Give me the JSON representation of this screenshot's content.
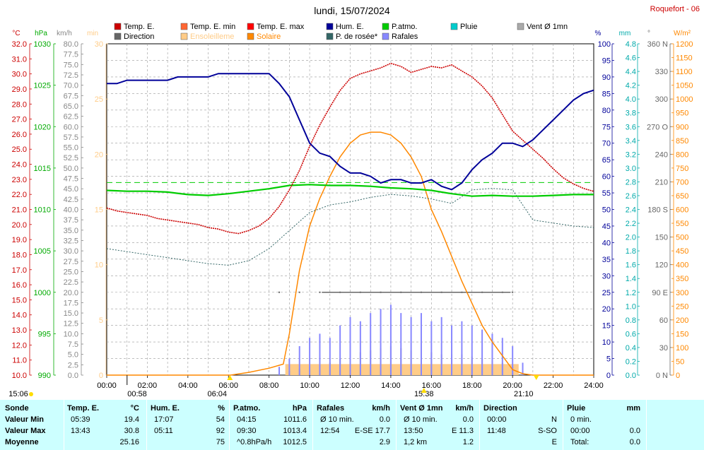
{
  "header": {
    "title": "lundi, 15/07/2024",
    "station": "Roquefort - 06",
    "sunrise_label": "06:04",
    "sunset_label": "21:10",
    "noon_label": "15:38",
    "left_time": "15:06",
    "left_time2": "00:58"
  },
  "legend": [
    {
      "label": "Temp. E.",
      "color": "#cc0000"
    },
    {
      "label": "Temp. E. min",
      "color": "#ff6633"
    },
    {
      "label": "Temp. E. max",
      "color": "#ff0000"
    },
    {
      "label": "Hum. E.",
      "color": "#000099"
    },
    {
      "label": "P.atmo.",
      "color": "#00cc00"
    },
    {
      "label": "Pluie",
      "color": "#00cccc"
    },
    {
      "label": "Vent Ø 1mn",
      "color": "#aaaaaa"
    },
    {
      "label": "Direction",
      "color": "#666666"
    },
    {
      "label": "Ensoleilleme",
      "color": "#ffcc88"
    },
    {
      "label": "Solaire",
      "color": "#ff8800"
    },
    {
      "label": "P. de rosée*",
      "color": "#336666"
    },
    {
      "label": "Rafales",
      "color": "#8888ff"
    }
  ],
  "axes": {
    "units": {
      "temp": "°C",
      "hpa": "hPa",
      "kmh": "km/h",
      "min": "min",
      "pct": "%",
      "mm": "mm",
      "deg": "°",
      "wm2": "W/m²"
    },
    "temp_ticks": [
      "32.0",
      "31.0",
      "30.0",
      "29.0",
      "28.0",
      "27.0",
      "26.0",
      "25.0",
      "24.0",
      "23.0",
      "22.0",
      "21.0",
      "20.0",
      "19.0",
      "18.0",
      "17.0",
      "16.0",
      "15.0",
      "14.0",
      "13.0",
      "12.0",
      "11.0",
      "10.0"
    ],
    "hpa_ticks": [
      "1030",
      "1025",
      "1020",
      "1015",
      "1010",
      "1005",
      "1000",
      "995",
      "990"
    ],
    "kmh_ticks": [
      "80.0",
      "77.5",
      "75.0",
      "72.5",
      "70.0",
      "67.5",
      "65.0",
      "62.5",
      "60.0",
      "57.5",
      "55.0",
      "52.5",
      "50.0",
      "47.5",
      "45.0",
      "42.5",
      "40.0",
      "37.5",
      "35.0",
      "32.5",
      "30.0",
      "27.5",
      "25.0",
      "22.5",
      "20.0",
      "17.5",
      "15.0",
      "12.5",
      "10.0",
      "7.5",
      "5.0",
      "2.5",
      "0.0"
    ],
    "min_ticks": [
      "30",
      "25",
      "20",
      "15",
      "10",
      "5",
      "0"
    ],
    "pct_ticks": [
      "100",
      "95",
      "90",
      "85",
      "80",
      "75",
      "70",
      "65",
      "60",
      "55",
      "50",
      "45",
      "40",
      "35",
      "30",
      "25",
      "20",
      "15",
      "10",
      "5",
      "0"
    ],
    "mm_ticks": [
      "4.8",
      "4.6",
      "4.4",
      "4.2",
      "4.0",
      "3.8",
      "3.6",
      "3.4",
      "3.2",
      "3.0",
      "2.8",
      "2.6",
      "2.4",
      "2.2",
      "2.0",
      "1.8",
      "1.6",
      "1.4",
      "1.2",
      "1.0",
      "0.8",
      "0.6",
      "0.4",
      "0.2",
      "0.0"
    ],
    "dir_ticks": [
      "360 N",
      "330",
      "300",
      "270 O",
      "240",
      "210",
      "180 S",
      "150",
      "120",
      "90 E",
      "60",
      "30",
      "0 N"
    ],
    "wm2_ticks": [
      "1200",
      "1150",
      "1100",
      "1050",
      "1000",
      "950",
      "900",
      "850",
      "800",
      "750",
      "700",
      "650",
      "600",
      "550",
      "500",
      "450",
      "400",
      "350",
      "300",
      "250",
      "200",
      "150",
      "100",
      "50",
      "0"
    ],
    "time_ticks": [
      "00:00",
      "02:00",
      "04:00",
      "06:00",
      "08:00",
      "10:00",
      "12:00",
      "14:00",
      "16:00",
      "18:00",
      "20:00",
      "22:00",
      "24:00"
    ]
  },
  "chart_data": {
    "type": "line",
    "title": "lundi, 15/07/2024",
    "x_unit": "hour",
    "xlim": [
      0,
      24
    ],
    "series": [
      {
        "name": "Temp. E.",
        "axis": "temp",
        "ylim": [
          10,
          32
        ],
        "color": "#cc0000",
        "x": [
          0,
          0.5,
          1,
          1.5,
          2,
          2.5,
          3,
          3.5,
          4,
          4.5,
          5,
          5.5,
          6,
          6.5,
          7,
          7.5,
          8,
          8.5,
          9,
          9.5,
          10,
          10.5,
          11,
          11.5,
          12,
          12.5,
          13,
          13.5,
          14,
          14.5,
          15,
          15.5,
          16,
          16.5,
          17,
          17.5,
          18,
          18.5,
          19,
          19.5,
          20,
          20.5,
          21,
          21.5,
          22,
          22.5,
          23,
          23.5,
          24
        ],
        "y": [
          21.1,
          20.9,
          20.8,
          20.7,
          20.6,
          20.4,
          20.3,
          20.2,
          20.1,
          20.0,
          19.8,
          19.7,
          19.5,
          19.4,
          19.6,
          19.9,
          20.4,
          21.2,
          22.3,
          23.6,
          25.2,
          26.6,
          27.8,
          28.9,
          29.7,
          30.0,
          30.2,
          30.4,
          30.7,
          30.5,
          30.1,
          30.3,
          30.5,
          30.4,
          30.6,
          30.2,
          29.8,
          29.2,
          28.4,
          27.3,
          26.2,
          25.6,
          25.0,
          24.4,
          23.7,
          23.1,
          22.7,
          22.4,
          22.2
        ]
      },
      {
        "name": "Hum. E.",
        "axis": "pct",
        "ylim": [
          0,
          100
        ],
        "color": "#000099",
        "x": [
          0,
          0.5,
          1,
          1.5,
          2,
          2.5,
          3,
          3.5,
          4,
          4.5,
          5,
          5.5,
          6,
          6.5,
          7,
          7.5,
          8,
          8.5,
          9,
          9.5,
          10,
          10.5,
          11,
          11.5,
          12,
          12.5,
          13,
          13.5,
          14,
          14.5,
          15,
          15.5,
          16,
          16.5,
          17,
          17.5,
          18,
          18.5,
          19,
          19.5,
          20,
          20.5,
          21,
          21.5,
          22,
          22.5,
          23,
          23.5,
          24
        ],
        "y": [
          88,
          88,
          89,
          89,
          89,
          89,
          89,
          90,
          90,
          90,
          90,
          91,
          91,
          91,
          91,
          91,
          91,
          88,
          84,
          77,
          70,
          67,
          66,
          63,
          61,
          61,
          60,
          58,
          59,
          59,
          58,
          58,
          59,
          57,
          56,
          58,
          62,
          65,
          67,
          70,
          70,
          69,
          71,
          74,
          77,
          80,
          83,
          85,
          86
        ]
      },
      {
        "name": "P.atmo.",
        "axis": "hpa",
        "ylim": [
          990,
          1030
        ],
        "color": "#00cc00",
        "x": [
          0,
          1,
          2,
          3,
          4,
          5,
          6,
          7,
          8,
          9,
          10,
          11,
          12,
          13,
          14,
          15,
          16,
          17,
          18,
          19,
          20,
          21,
          22,
          23,
          24
        ],
        "y": [
          1012.3,
          1012.2,
          1012.2,
          1012.1,
          1011.8,
          1011.7,
          1011.9,
          1012.2,
          1012.5,
          1012.9,
          1013.0,
          1012.9,
          1012.9,
          1012.8,
          1012.6,
          1012.5,
          1012.3,
          1011.9,
          1011.6,
          1011.7,
          1011.6,
          1011.6,
          1011.7,
          1011.8,
          1011.8
        ]
      },
      {
        "name": "P. de rosée*",
        "axis": "temp",
        "ylim": [
          10,
          32
        ],
        "color": "#336666",
        "x": [
          0,
          1,
          2,
          3,
          4,
          5,
          6,
          7,
          8,
          9,
          10,
          11,
          12,
          13,
          14,
          15,
          16,
          17,
          18,
          19,
          20,
          21,
          22,
          23,
          24
        ],
        "y": [
          18.4,
          18.2,
          18.0,
          17.8,
          17.6,
          17.4,
          17.3,
          17.6,
          18.4,
          19.6,
          20.8,
          21.3,
          21.5,
          21.8,
          22.0,
          21.9,
          21.7,
          21.4,
          22.3,
          22.4,
          22.3,
          20.3,
          20.1,
          19.9,
          19.8
        ]
      },
      {
        "name": "Solaire",
        "axis": "wm2",
        "ylim": [
          0,
          1200
        ],
        "color": "#ff8800",
        "x": [
          0,
          6.1,
          7,
          8,
          8.7,
          9,
          9.5,
          10,
          10.5,
          11,
          11.5,
          12,
          12.5,
          13,
          13.5,
          14,
          14.5,
          15,
          15.5,
          16,
          16.5,
          17,
          17.5,
          18,
          18.5,
          19,
          19.5,
          20,
          20.5,
          21,
          21.1,
          24
        ],
        "y": [
          0,
          0,
          10,
          25,
          40,
          150,
          380,
          540,
          640,
          720,
          790,
          840,
          870,
          880,
          880,
          870,
          840,
          790,
          720,
          600,
          520,
          430,
          340,
          260,
          180,
          120,
          70,
          20,
          5,
          0,
          0,
          0
        ]
      },
      {
        "name": "Rafales",
        "axis": "kmh",
        "ylim": [
          0,
          80
        ],
        "color": "#8888ff",
        "x": [
          8.5,
          9,
          9.5,
          10,
          10.5,
          11,
          11.5,
          12,
          12.5,
          13,
          13.5,
          14,
          14.5,
          15,
          15.5,
          16,
          16.5,
          17,
          17.5,
          18,
          18.5,
          19,
          19.5,
          20,
          20.5,
          21
        ],
        "y": [
          2,
          4,
          7,
          9,
          10,
          9,
          12,
          14,
          13,
          15,
          16,
          17,
          15,
          14,
          15,
          13,
          14,
          12,
          13,
          12,
          11,
          10,
          9,
          7,
          3,
          0
        ]
      },
      {
        "name": "Vent Ø 1mn",
        "axis": "kmh",
        "ylim": [
          0,
          80
        ],
        "color": "#aaaaaa",
        "x": [
          8.5,
          9,
          9.5,
          10,
          10.5,
          11,
          11.5,
          12,
          12.5,
          13,
          13.5,
          14,
          14.5,
          15,
          15.5,
          16,
          16.5,
          17,
          17.5,
          18,
          18.5,
          19,
          19.5,
          20,
          20.5,
          21
        ],
        "y": [
          0.5,
          1,
          1.5,
          2,
          2.5,
          3,
          4,
          5,
          5.5,
          6,
          6.5,
          7,
          6.5,
          6,
          6,
          5.5,
          5,
          5,
          5,
          4.5,
          4,
          3.5,
          3,
          2,
          1,
          0
        ]
      },
      {
        "name": "Ensoleilleme",
        "axis": "min",
        "ylim": [
          0,
          30
        ],
        "color": "#ffcc88",
        "x": [
          8.8,
          9,
          10,
          11,
          12,
          13,
          14,
          15,
          16,
          17,
          18,
          19,
          20,
          20.3
        ],
        "y": [
          0,
          1,
          1,
          1,
          1,
          1,
          1,
          1,
          1,
          1,
          1,
          1,
          1,
          0
        ]
      },
      {
        "name": "Direction",
        "axis": "dir",
        "ylim": [
          0,
          360
        ],
        "color": "#666666",
        "x": [
          8.5,
          9.5,
          10.5,
          11.5,
          12.5,
          13.5,
          14.5,
          15.5,
          16.5,
          17.5,
          18.5,
          19.5,
          20.0
        ],
        "y": [
          90,
          90,
          90,
          90,
          90,
          90,
          90,
          90,
          90,
          90,
          90,
          90,
          90
        ]
      }
    ],
    "reference_line": {
      "axis": "hpa",
      "y": 1013.25,
      "color": "#00cc00"
    }
  },
  "stats": {
    "headers": {
      "sonde": "Sonde",
      "temp": "Temp. E.",
      "temp_unit": "°C",
      "hum": "Hum. E.",
      "hum_unit": "%",
      "patmo": "P.atmo.",
      "patmo_unit": "hPa",
      "raf": "Rafales",
      "raf_unit": "km/h",
      "vent": "Vent Ø 1mn",
      "vent_unit": "km/h",
      "dir": "Direction",
      "pluie": "Pluie",
      "pluie_unit": "mm"
    },
    "rows": [
      {
        "label": "Valeur Min",
        "temp_t": "05:39",
        "temp_v": "19.4",
        "hum_t": "17:07",
        "hum_v": "54",
        "patmo_t": "04:15",
        "patmo_v": "1011.6",
        "raf_t": "Ø 10 min.",
        "raf_v": "0.0",
        "vent_t": "Ø 10 min.",
        "vent_v": "0.0",
        "dir_t": "00:00",
        "dir_v": "N",
        "pluie_t": "0 min.",
        "pluie_v": ""
      },
      {
        "label": "Valeur Max",
        "temp_t": "13:43",
        "temp_v": "30.8",
        "hum_t": "05:11",
        "hum_v": "92",
        "patmo_t": "09:30",
        "patmo_v": "1013.4",
        "raf_t": "12:54",
        "raf_v": "E-SE 17.7",
        "vent_t": "13:50",
        "vent_v": "E 11.3",
        "dir_t": "11:48",
        "dir_v": "S-SO",
        "pluie_t": "00:00",
        "pluie_v": "0.0"
      },
      {
        "label": "Moyenne",
        "temp_t": "",
        "temp_v": "25.16",
        "hum_t": "",
        "hum_v": "75",
        "patmo_t": "^0.8hPa/h",
        "patmo_v": "1012.5",
        "raf_t": "",
        "raf_v": "2.9",
        "vent_t": "1,2 km",
        "vent_v": "1.2",
        "dir_t": "",
        "dir_v": "E",
        "pluie_t": "Total:",
        "pluie_v": "0.0"
      }
    ]
  }
}
